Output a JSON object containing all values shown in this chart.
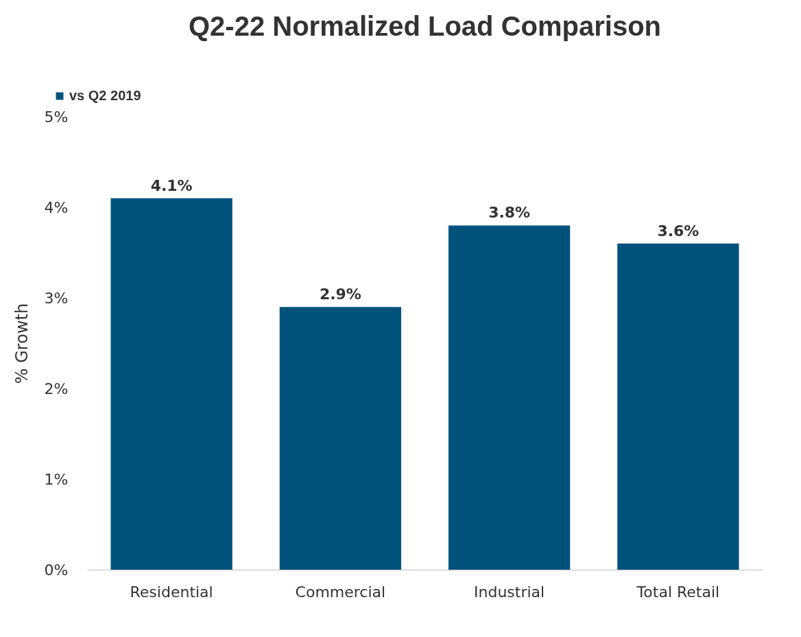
{
  "chart_data": {
    "type": "bar",
    "title": "Q2-22 Normalized Load Comparison",
    "ylabel": "% Growth",
    "categories": [
      "Residential",
      "Commercial",
      "Industrial",
      "Total Retail"
    ],
    "series": [
      {
        "name": "vs Q2 2019",
        "color": "#00527c",
        "values": [
          4.1,
          2.9,
          3.8,
          3.6
        ],
        "value_labels": [
          "4.1%",
          "2.9%",
          "3.8%",
          "3.6%"
        ]
      }
    ],
    "ylim": [
      0,
      5
    ],
    "yticks": [
      {
        "value": 0,
        "label": "0%"
      },
      {
        "value": 1,
        "label": "1%"
      },
      {
        "value": 2,
        "label": "2%"
      },
      {
        "value": 3,
        "label": "3%"
      },
      {
        "value": 4,
        "label": "4%"
      },
      {
        "value": 5,
        "label": "5%"
      }
    ],
    "grid": false,
    "legend": "top left"
  }
}
